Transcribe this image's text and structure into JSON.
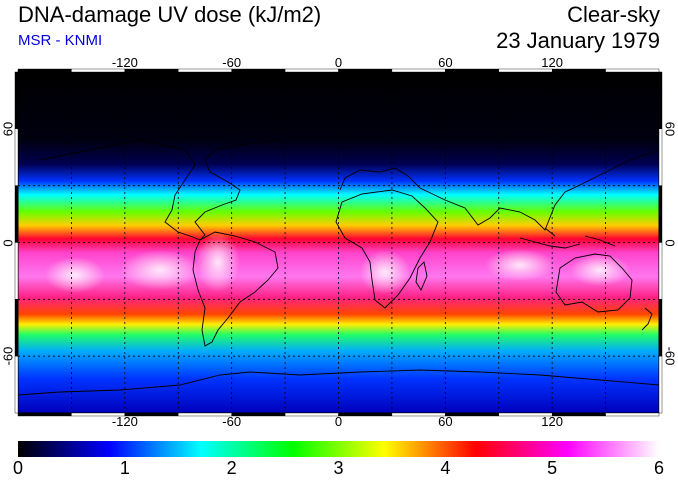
{
  "header": {
    "title": "DNA-damage UV dose (kJ/m2)",
    "source": "MSR - KNMI",
    "condition": "Clear-sky",
    "date": "23 January 1979"
  },
  "colors": {
    "source_text": "#0000dd"
  },
  "map": {
    "longitude_labels": [
      "-120",
      "-60",
      "0",
      "60",
      "120"
    ],
    "longitude_values": [
      -120,
      -60,
      0,
      60,
      120
    ],
    "latitude_labels": [
      "60",
      "0",
      "-60"
    ],
    "latitude_values": [
      60,
      0,
      -60
    ],
    "lon_range": [
      -180,
      180
    ],
    "lat_range": [
      -90,
      90
    ]
  },
  "colorbar": {
    "ticks": [
      "0",
      "1",
      "2",
      "3",
      "4",
      "5",
      "6"
    ],
    "min": 0,
    "max": 6,
    "stops": [
      "#000000",
      "#0000ff",
      "#00ffff",
      "#00ff00",
      "#ffff00",
      "#ff0000",
      "#ff00ff",
      "#ffffff"
    ]
  }
}
